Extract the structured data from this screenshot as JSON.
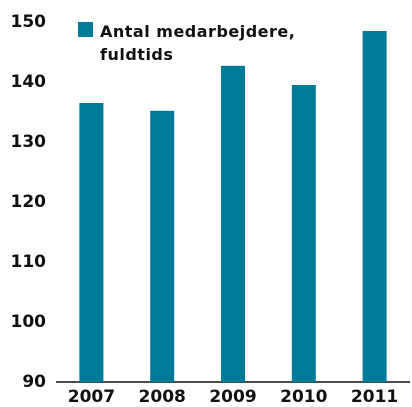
{
  "chart_data": {
    "type": "bar",
    "categories": [
      "2007",
      "2008",
      "2009",
      "2010",
      "2011"
    ],
    "series": [
      {
        "name": "Antal medarbejdere, fuldtids",
        "color": "#007a99",
        "values": [
          136.5,
          135.2,
          142.7,
          139.5,
          148.5
        ]
      }
    ],
    "ylim": [
      90,
      150
    ],
    "yticks": [
      90,
      100,
      110,
      120,
      130,
      140,
      150
    ],
    "legend": "upper left"
  }
}
